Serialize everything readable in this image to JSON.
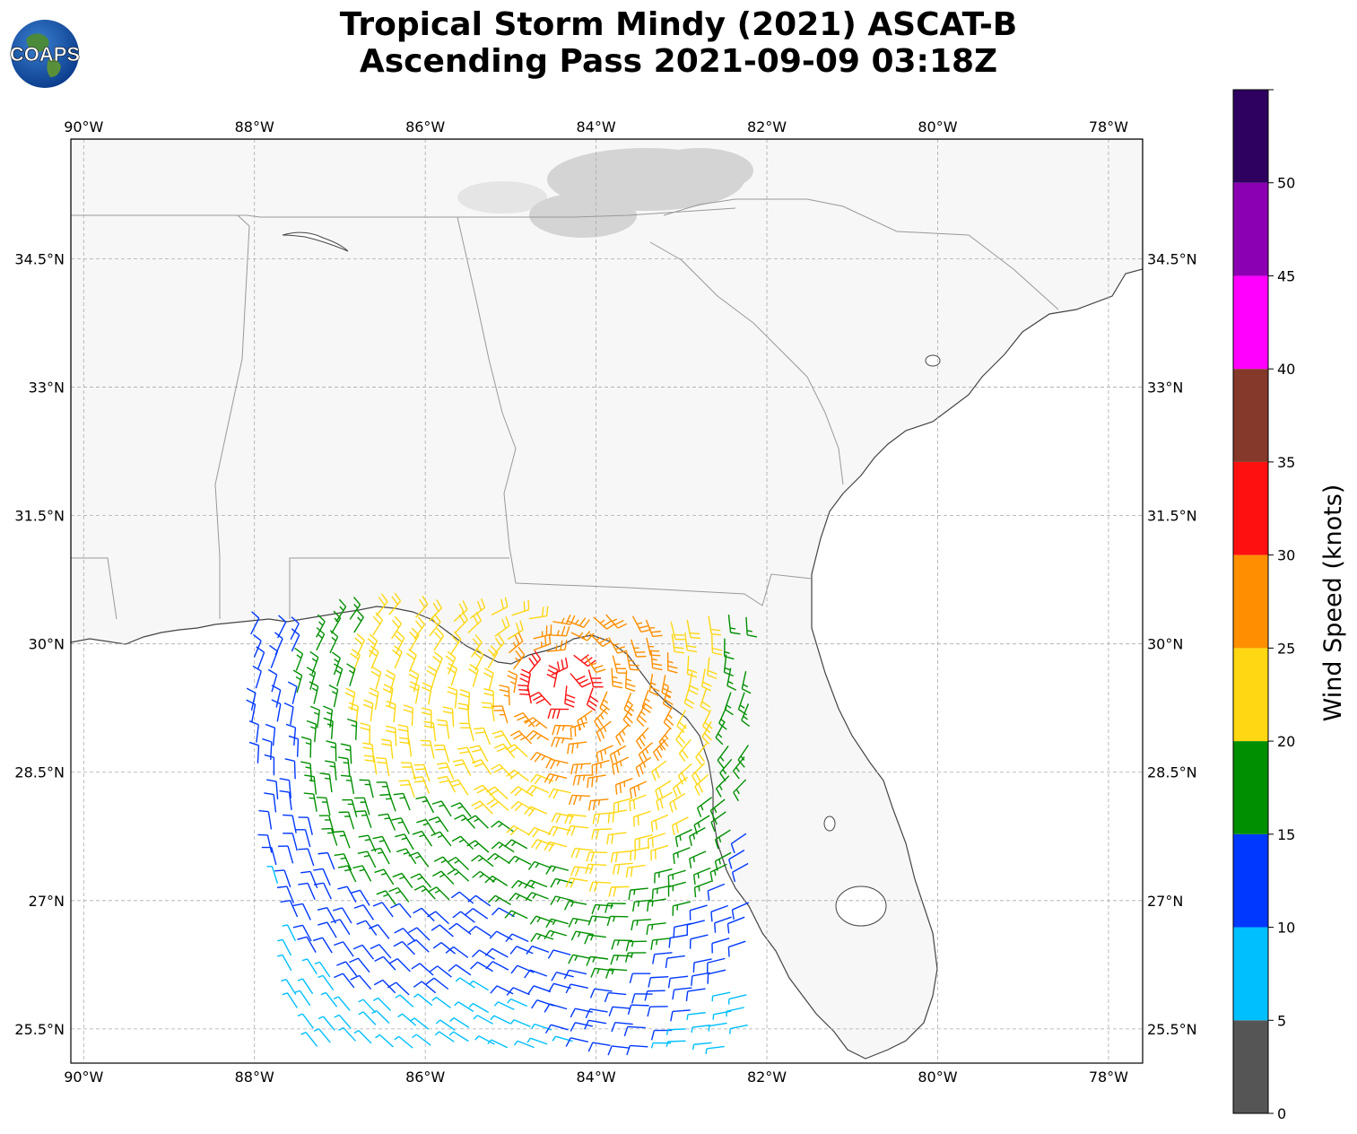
{
  "header": {
    "title_line1": "Tropical Storm Mindy (2021) ASCAT-B",
    "title_line2": "Ascending Pass 2021-09-09 03:18Z",
    "logo_text": "COAPS"
  },
  "map": {
    "extent": {
      "lon_min": -90.15,
      "lon_max": -77.6,
      "lat_min": 25.1,
      "lat_max": 35.9
    },
    "lon_ticks": [
      {
        "value": -90,
        "label": "90°W"
      },
      {
        "value": -88,
        "label": "88°W"
      },
      {
        "value": -86,
        "label": "86°W"
      },
      {
        "value": -84,
        "label": "84°W"
      },
      {
        "value": -82,
        "label": "82°W"
      },
      {
        "value": -80,
        "label": "80°W"
      },
      {
        "value": -78,
        "label": "78°W"
      }
    ],
    "lat_ticks": [
      {
        "value": 34.5,
        "label": "34.5°N"
      },
      {
        "value": 33,
        "label": "33°N"
      },
      {
        "value": 31.5,
        "label": "31.5°N"
      },
      {
        "value": 30,
        "label": "30°N"
      },
      {
        "value": 28.5,
        "label": "28.5°N"
      },
      {
        "value": 27,
        "label": "27°N"
      },
      {
        "value": 25.5,
        "label": "25.5°N"
      }
    ],
    "gridlines": true,
    "land_color": "#f7f7f7",
    "ocean_color": "#ffffff",
    "coast_color": "#444444",
    "border_color": "#999999"
  },
  "colorbar": {
    "label": "Wind Speed (knots)",
    "bins": [
      {
        "min": 0,
        "max": 5,
        "color": "#555555"
      },
      {
        "min": 5,
        "max": 10,
        "color": "#00bfff"
      },
      {
        "min": 10,
        "max": 15,
        "color": "#0038ff"
      },
      {
        "min": 15,
        "max": 20,
        "color": "#008f00"
      },
      {
        "min": 20,
        "max": 25,
        "color": "#ffd712"
      },
      {
        "min": 25,
        "max": 30,
        "color": "#ff8f00"
      },
      {
        "min": 30,
        "max": 35,
        "color": "#ff1010"
      },
      {
        "min": 35,
        "max": 40,
        "color": "#85392a"
      },
      {
        "min": 40,
        "max": 45,
        "color": "#ff00ff"
      },
      {
        "min": 45,
        "max": 50,
        "color": "#8c00b4"
      },
      {
        "min": 50,
        "max": 55,
        "color": "#2e0060"
      }
    ],
    "ticks": [
      0,
      5,
      10,
      15,
      20,
      25,
      30,
      35,
      40,
      45,
      50
    ],
    "tick_labels": [
      "0",
      "5",
      "10",
      "15",
      "20",
      "25",
      "30",
      "35",
      "40",
      "45",
      "50"
    ]
  },
  "wind_field": {
    "swath_lon_range": [
      -88.0,
      -82.1
    ],
    "swath_lat_range": [
      25.2,
      30.3
    ],
    "storm_center": {
      "lon": -84.4,
      "lat": 29.5
    },
    "barb_style": "wind barbs; open circles denote calm (<5 kt)"
  }
}
